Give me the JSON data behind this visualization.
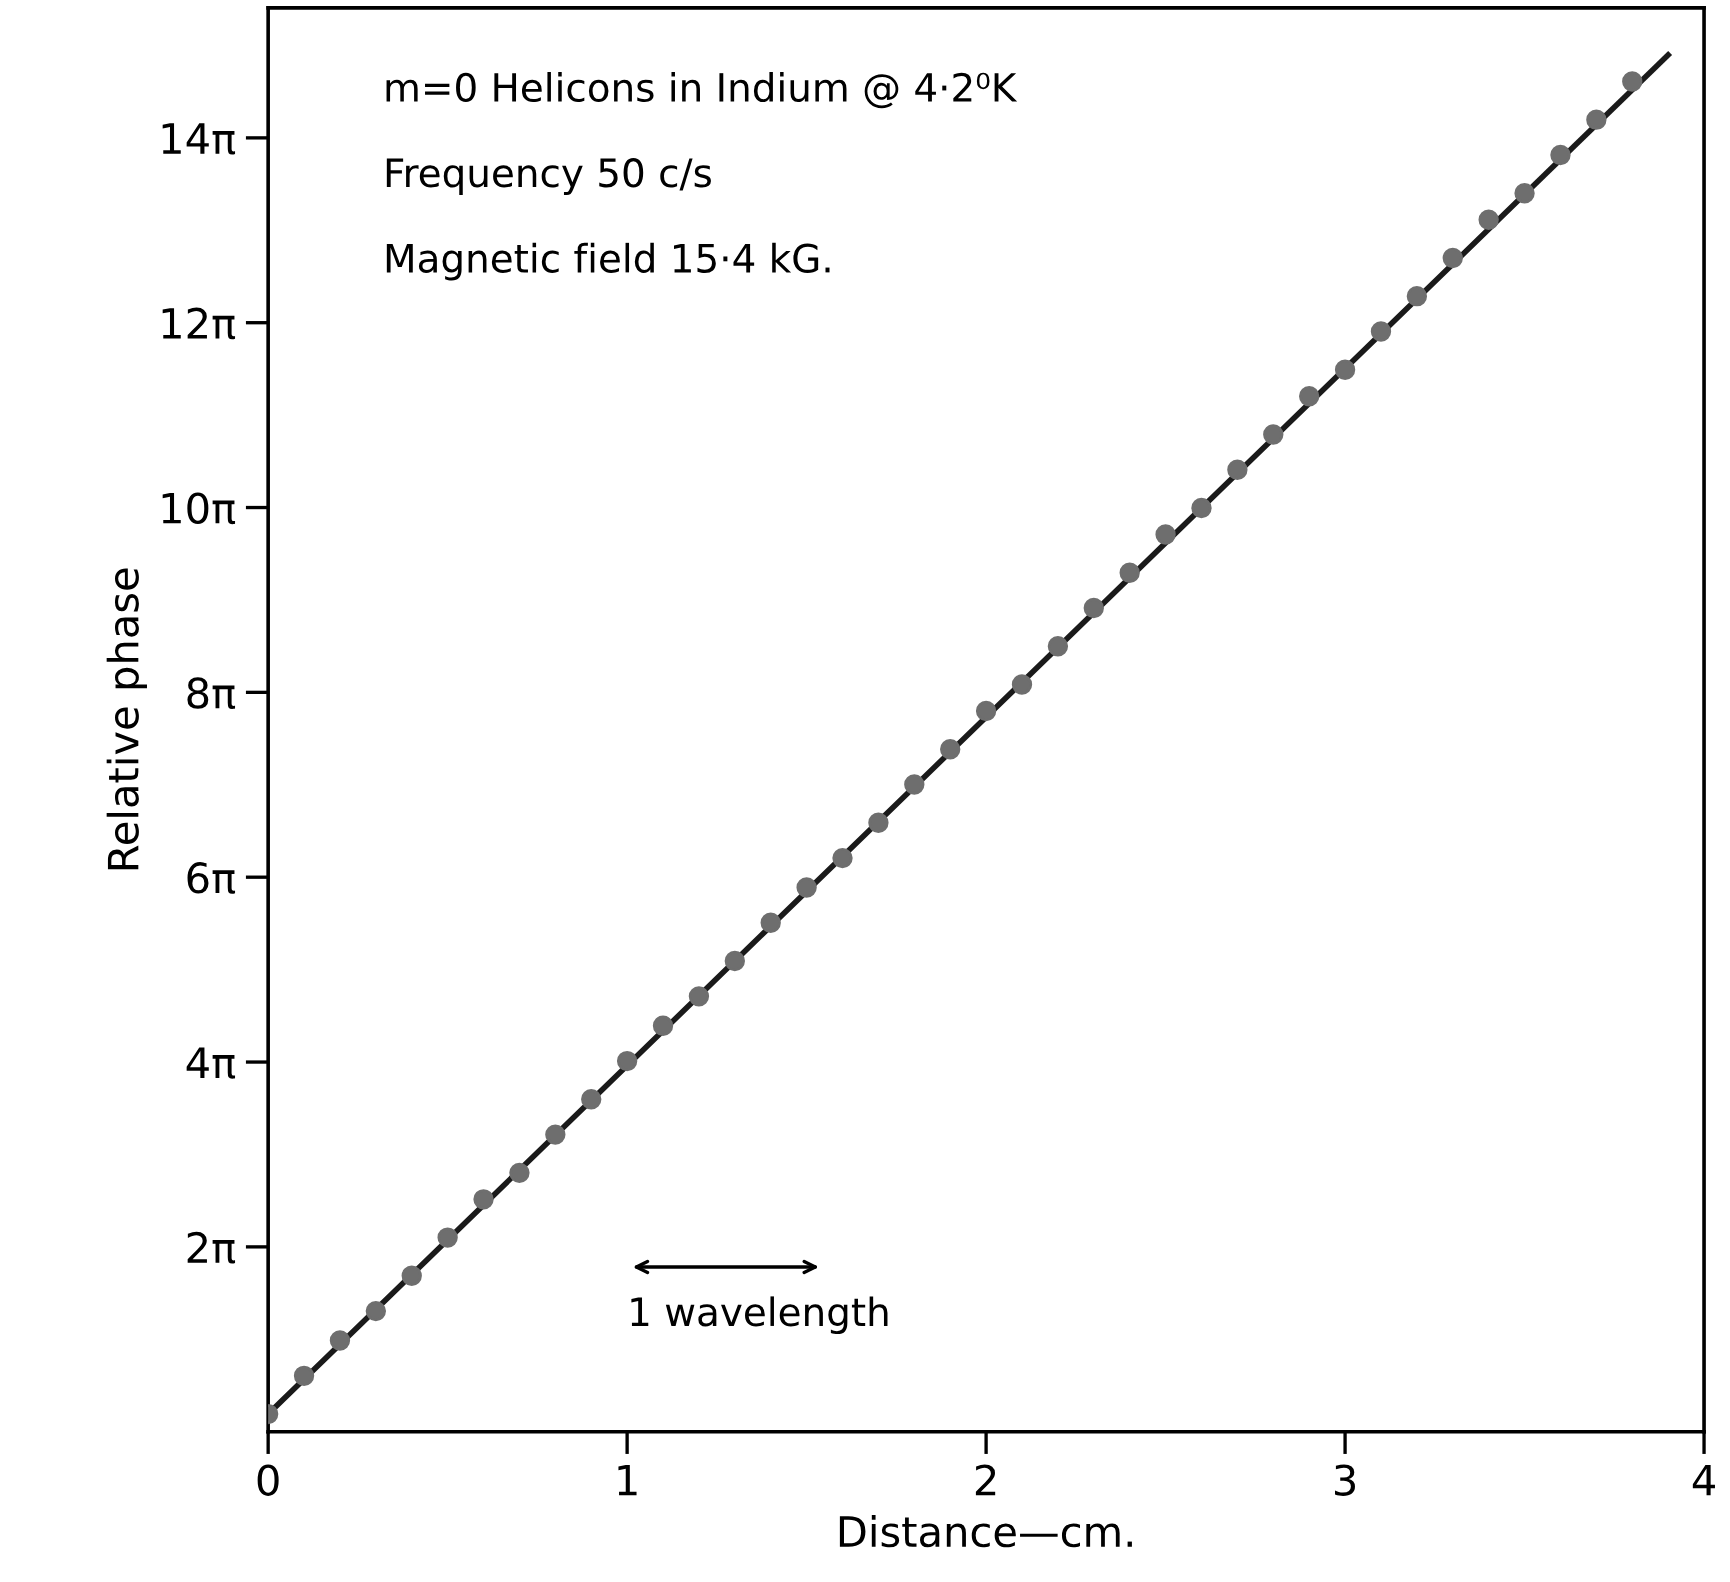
{
  "chart_data": {
    "type": "scatter",
    "xlabel": "Distance—cm.",
    "ylabel": "Relative phase",
    "annotations": [
      "m=0 Helicons in Indium @ 4·2⁰K",
      "Frequency 50 c/s",
      "Magnetic field 15·4 kG.",
      "1 wavelength"
    ],
    "xlim": [
      0,
      4
    ],
    "ylim": [
      0,
      48.4
    ],
    "xticks": [
      0,
      1,
      2,
      3,
      4
    ],
    "yticks": [
      {
        "value": 6.283,
        "label": "2π"
      },
      {
        "value": 12.566,
        "label": "4π"
      },
      {
        "value": 18.85,
        "label": "6π"
      },
      {
        "value": 25.133,
        "label": "8π"
      },
      {
        "value": 31.416,
        "label": "10π"
      },
      {
        "value": 37.699,
        "label": "12π"
      },
      {
        "value": 43.982,
        "label": "14π"
      }
    ],
    "grid": false,
    "legend": false,
    "series": [
      {
        "type": "line",
        "color": "#1a1a1a",
        "marker": "none",
        "line_style": "solid",
        "x": [
          0,
          3.9
        ],
        "values": [
          0.6,
          46.8
        ]
      },
      {
        "color": "#6e6e6e",
        "marker": "circle",
        "x": [
          0,
          0.1,
          0.2,
          0.3,
          0.4,
          0.5,
          0.6,
          0.7,
          0.8,
          0.9,
          1.0,
          1.1,
          1.2,
          1.3,
          1.4,
          1.5,
          1.6,
          1.7,
          1.8,
          1.9,
          2.0,
          2.1,
          2.2,
          2.3,
          2.4,
          2.5,
          2.6,
          2.7,
          2.8,
          2.9,
          3.0,
          3.1,
          3.2,
          3.3,
          3.4,
          3.5,
          3.6,
          3.7,
          3.8
        ],
        "values": [
          0.6,
          1.9,
          3.1,
          4.1,
          5.3,
          6.6,
          7.9,
          8.8,
          10.1,
          11.3,
          12.6,
          13.8,
          14.8,
          16.0,
          17.3,
          18.5,
          19.5,
          20.7,
          22.0,
          23.2,
          24.5,
          25.4,
          26.7,
          28.0,
          29.2,
          30.5,
          31.4,
          32.7,
          33.9,
          35.2,
          36.1,
          37.4,
          38.6,
          39.9,
          41.2,
          42.1,
          43.4,
          44.6,
          45.9
        ]
      }
    ]
  }
}
